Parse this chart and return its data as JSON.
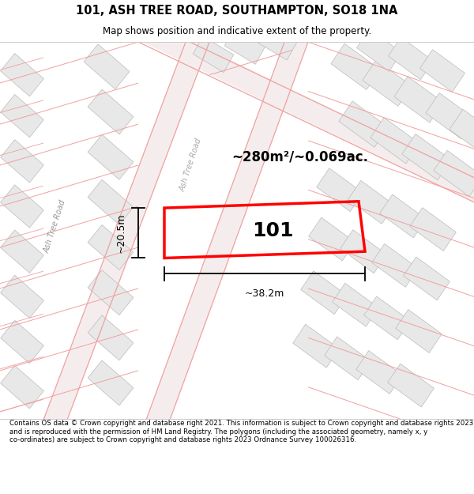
{
  "title": "101, ASH TREE ROAD, SOUTHAMPTON, SO18 1NA",
  "subtitle": "Map shows position and indicative extent of the property.",
  "footer": "Contains OS data © Crown copyright and database right 2021. This information is subject to Crown copyright and database rights 2023 and is reproduced with the permission of HM Land Registry. The polygons (including the associated geometry, namely x, y co-ordinates) are subject to Crown copyright and database rights 2023 Ordnance Survey 100026316.",
  "area_label": "~280m²/~0.069ac.",
  "width_label": "~38.2m",
  "height_label": "~20.5m",
  "property_number": "101",
  "map_bg": "#ffffff",
  "plot_color": "#ff0000",
  "road_label_left": "Ash Tree Road",
  "road_label_right": "Ash Tree Road",
  "fig_bg": "#ffffff",
  "building_face": "#e8e8e8",
  "building_edge": "#bbbbbb",
  "road_line_color": "#f0a0a0",
  "road_fill": "#f5eded"
}
